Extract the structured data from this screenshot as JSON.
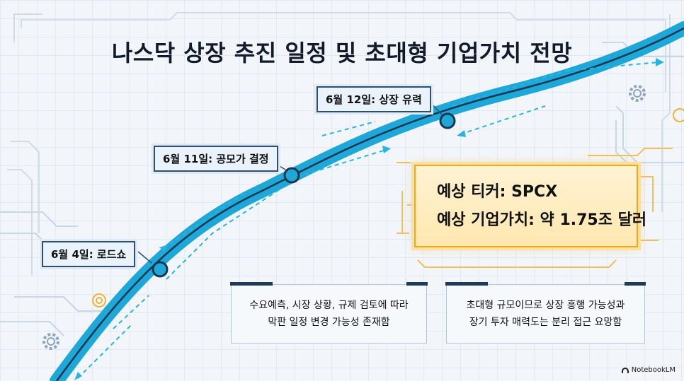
{
  "title": "나스닥 상장 추진 일정 및 초대형 기업가치 전망",
  "milestones": [
    {
      "label": "6월 4일: 로드쇼"
    },
    {
      "label": "6월 11일: 공모가 결정"
    },
    {
      "label": "6월 12일: 상장 유력"
    }
  ],
  "highlight": {
    "ticker": "예상 티커: SPCX",
    "valuation": "예상 기업가치: 약 1.75조 달러"
  },
  "notes": {
    "left": [
      "수요예측, 시장 상황, 규제 검토에 따라",
      "막판 일정 변경 가능성 존재함"
    ],
    "right": [
      "초대형 규모이므로 상장 흥행 가능성과",
      "장기 투자 매력도는 분리 접근 요망함"
    ]
  },
  "brand": "NotebookLM",
  "colors": {
    "curve": "#1da8d8",
    "curve_core": "#1c3552",
    "highlight": "#f0a91c"
  }
}
